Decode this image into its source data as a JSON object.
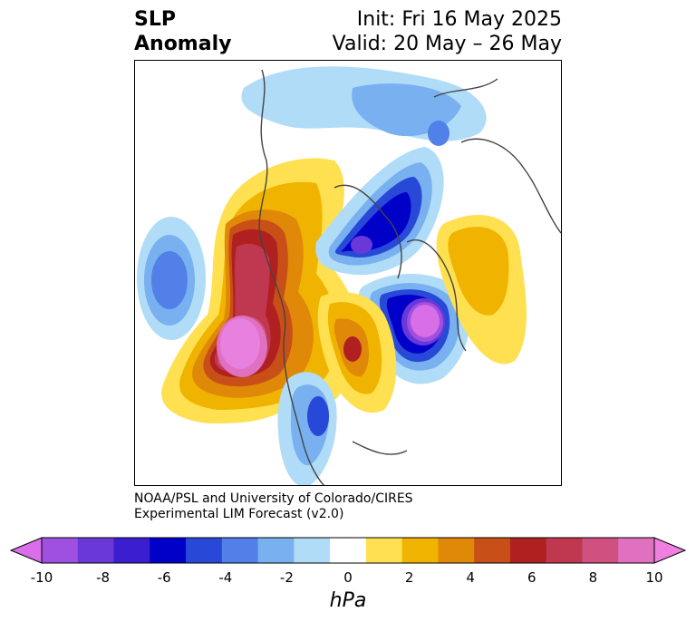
{
  "title": {
    "left_line1": "SLP",
    "left_line2": "Anomaly",
    "right_line1": "Init: Fri 16 May 2025",
    "right_line2": "Valid: 20 May – 26 May"
  },
  "credit": {
    "line1": "NOAA/PSL and University of Colorado/CIRES",
    "line2": "Experimental LIM Forecast (v2.0)"
  },
  "colorbar": {
    "unit": "hPa",
    "ticks": [
      "-10",
      "-8",
      "-6",
      "-4",
      "-2",
      "0",
      "2",
      "4",
      "6",
      "8",
      "10"
    ],
    "colors": [
      "#d86ee8",
      "#a050e0",
      "#6a38d8",
      "#3a1ed0",
      "#0000c8",
      "#2848d8",
      "#5080e8",
      "#78b0f0",
      "#b0dcf8",
      "#ffffff",
      "#ffe050",
      "#f0b400",
      "#e08808",
      "#c85018",
      "#b02020",
      "#c03850",
      "#d05080",
      "#e070c0",
      "#f080e0"
    ],
    "extend": "both"
  },
  "map": {
    "projection": "polar-stereographic",
    "features": [
      {
        "name": "positive-anomaly-north-pacific",
        "peak": 10,
        "color": "#e880e0"
      },
      {
        "name": "positive-anomaly-alaska-yukon",
        "peak": 6
      },
      {
        "name": "negative-anomaly-north-atlantic",
        "peak": -10
      },
      {
        "name": "negative-anomaly-arctic",
        "peak": -8
      },
      {
        "name": "negative-anomaly-western-siberia",
        "peak": -4
      },
      {
        "name": "negative-anomaly-us-southeast",
        "peak": -6
      },
      {
        "name": "positive-anomaly-europe",
        "peak": 2
      },
      {
        "name": "positive-anomaly-greenland",
        "peak": 6
      }
    ]
  }
}
